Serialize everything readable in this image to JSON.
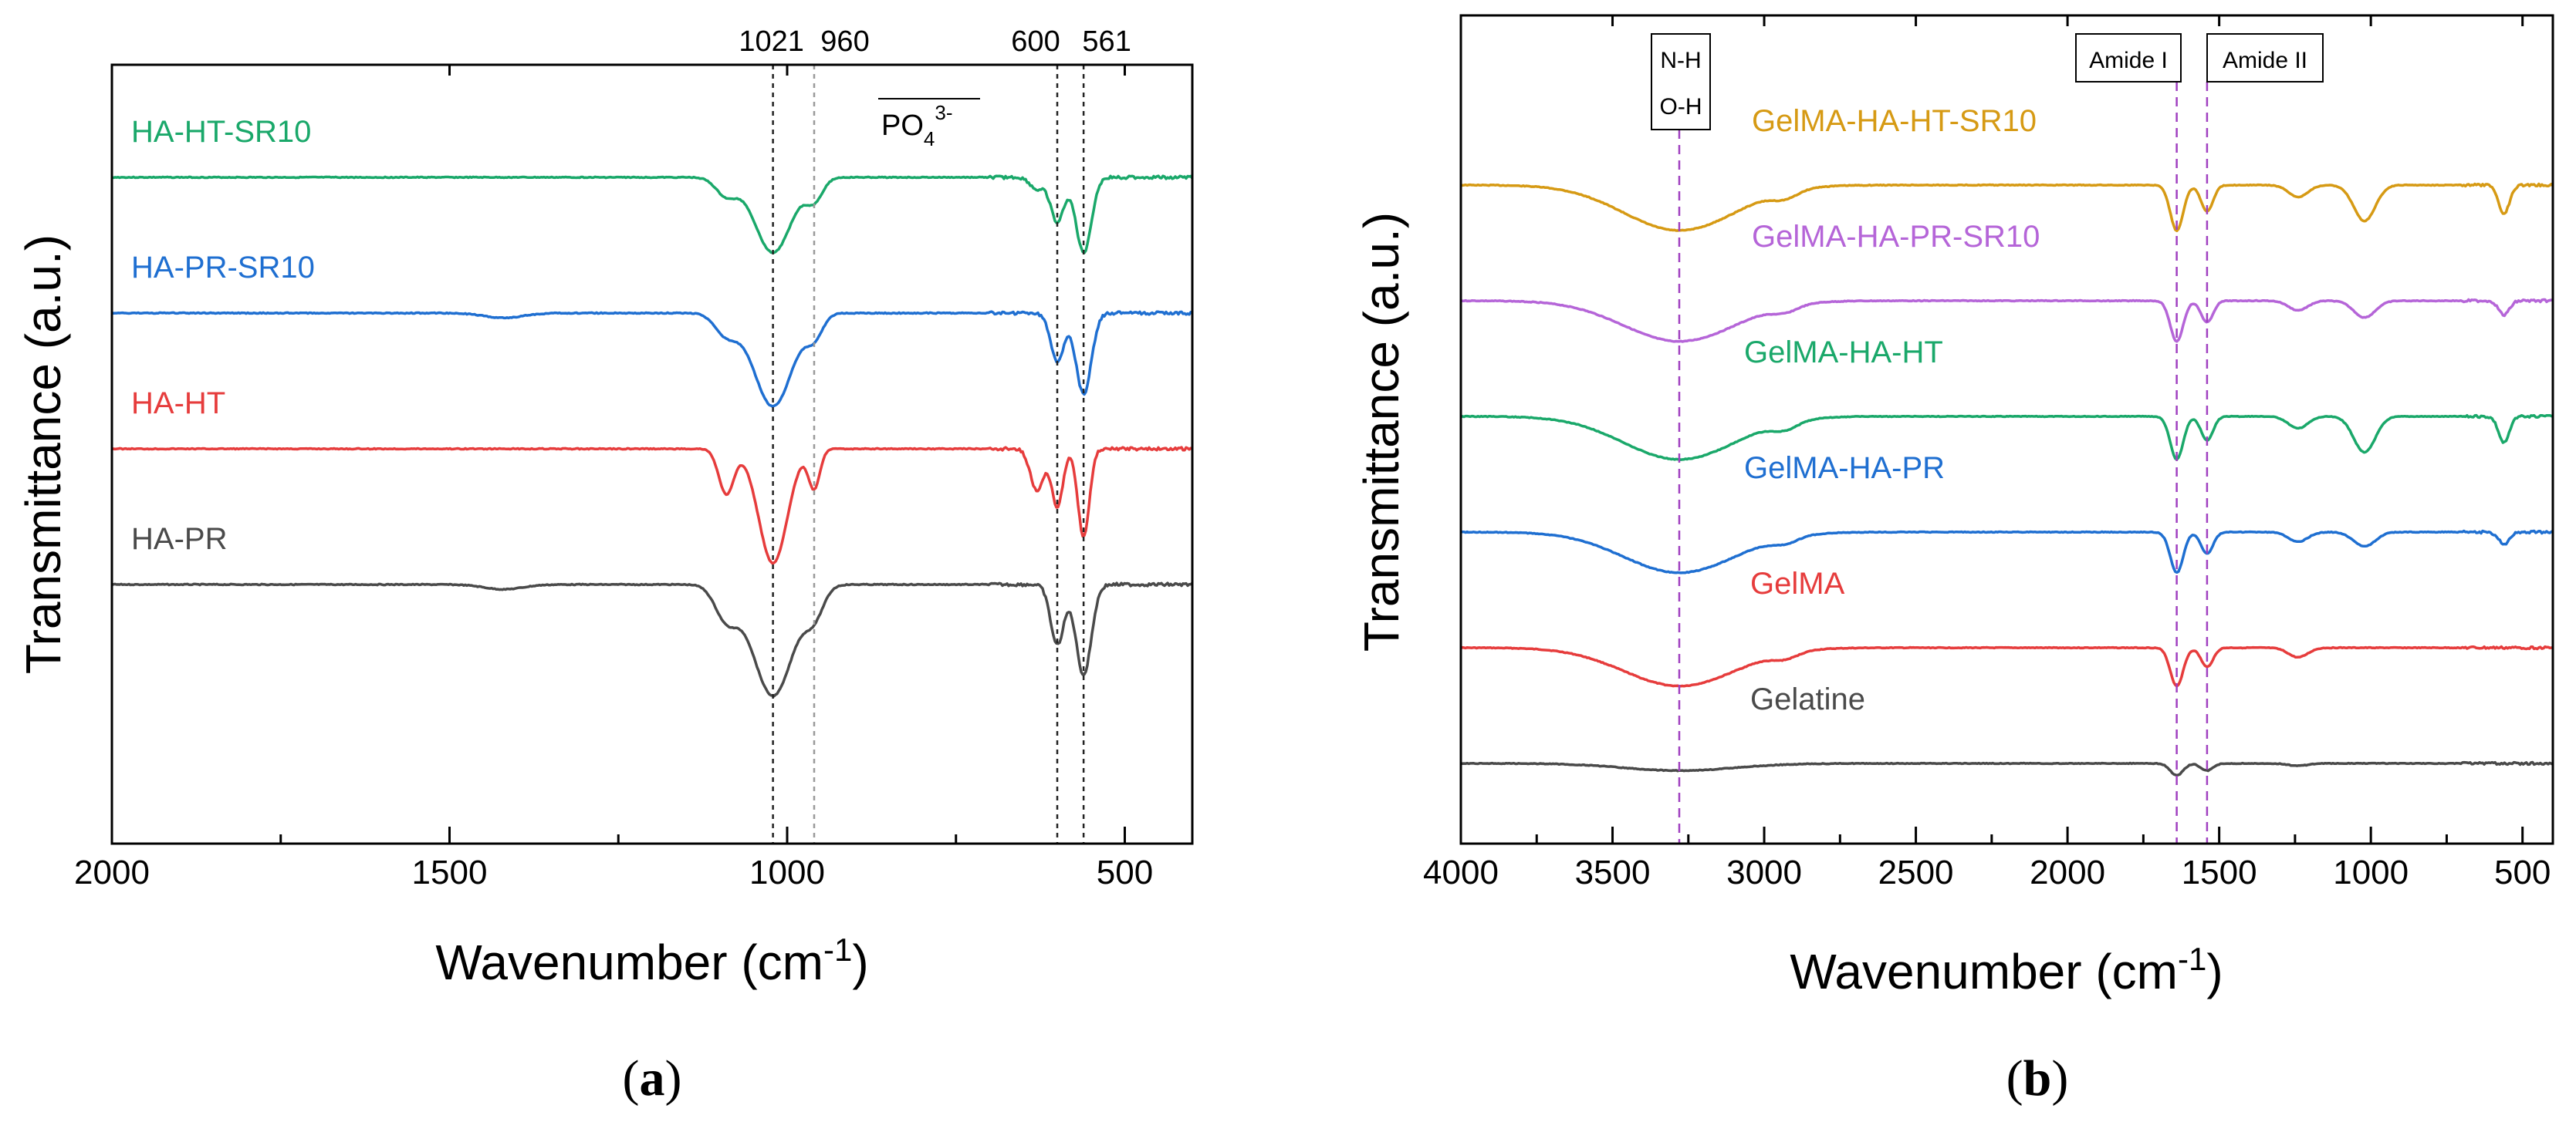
{
  "chart_data": [
    {
      "type": "line",
      "panel_label": "a",
      "xlabel_base": "Wavenumber (cm",
      "xlabel_sup": "-1",
      "xlabel_close": ")",
      "ylabel": "Transmittance (a.u.)",
      "xlim": [
        2000,
        400
      ],
      "xticks": [
        2000,
        1500,
        1000,
        500
      ],
      "xtick_labels": [
        "2000",
        "1500",
        "1000",
        "500"
      ],
      "yticks": false,
      "series": [
        {
          "name": "HA-HT-SR10",
          "color": "#1aa86a",
          "offset": 3.0,
          "peaks": [
            [
              1021,
              1.25,
              38
            ],
            [
              960,
              0.35,
              18
            ],
            [
              1090,
              0.3,
              22
            ],
            [
              600,
              0.75,
              14
            ],
            [
              561,
              1.25,
              16
            ],
            [
              630,
              0.2,
              14
            ]
          ]
        },
        {
          "name": "HA-PR-SR10",
          "color": "#1f6fd1",
          "offset": 2.0,
          "peaks": [
            [
              1021,
              1.55,
              40
            ],
            [
              960,
              0.35,
              18
            ],
            [
              1090,
              0.35,
              24
            ],
            [
              600,
              0.8,
              14
            ],
            [
              561,
              1.35,
              16
            ],
            [
              1420,
              0.08,
              40
            ]
          ]
        },
        {
          "name": "HA-HT",
          "color": "#e63c3c",
          "offset": 1.0,
          "peaks": [
            [
              1021,
              1.9,
              30
            ],
            [
              960,
              0.65,
              12
            ],
            [
              1090,
              0.75,
              16
            ],
            [
              600,
              0.95,
              12
            ],
            [
              561,
              1.45,
              12
            ],
            [
              630,
              0.7,
              14
            ]
          ]
        },
        {
          "name": "HA-PR",
          "color": "#4a4a4a",
          "offset": 0.0,
          "peaks": [
            [
              1021,
              1.85,
              42
            ],
            [
              960,
              0.45,
              20
            ],
            [
              1090,
              0.55,
              24
            ],
            [
              600,
              1.0,
              14
            ],
            [
              561,
              1.5,
              16
            ],
            [
              1420,
              0.08,
              40
            ]
          ]
        }
      ],
      "annotations": [
        {
          "text": "1021",
          "x": 1021
        },
        {
          "text": "960",
          "x": 960
        },
        {
          "text": "600",
          "x": 600
        },
        {
          "text": "561",
          "x": 561
        }
      ],
      "group_label_base": "PO",
      "group_label_sub": "4",
      "group_label_sup": "3-"
    },
    {
      "type": "line",
      "panel_label": "b",
      "xlabel_base": "Wavenumber (cm",
      "xlabel_sup": "-1",
      "xlabel_close": ")",
      "ylabel": "Transmittance (a.u.)",
      "xlim": [
        4000,
        400
      ],
      "xticks": [
        4000,
        3500,
        3000,
        2500,
        2000,
        1500,
        1000,
        500
      ],
      "xtick_labels": [
        "4000",
        "3500",
        "3000",
        "2500",
        "2000",
        "1500",
        "1000",
        "500"
      ],
      "yticks": false,
      "series": [
        {
          "name": "GelMA-HA-HT-SR10",
          "color": "#d69a14",
          "offset": 5.0,
          "peaks": [
            [
              3280,
              0.95,
              260
            ],
            [
              1640,
              0.95,
              30
            ],
            [
              1540,
              0.55,
              28
            ],
            [
              1021,
              0.75,
              50
            ],
            [
              561,
              0.6,
              25
            ],
            [
              2930,
              0.15,
              60
            ],
            [
              1240,
              0.25,
              45
            ]
          ]
        },
        {
          "name": "GelMA-HA-PR-SR10",
          "color": "#b565d8",
          "offset": 4.0,
          "peaks": [
            [
              3280,
              0.85,
              260
            ],
            [
              1640,
              0.85,
              30
            ],
            [
              1540,
              0.45,
              28
            ],
            [
              1021,
              0.35,
              50
            ],
            [
              561,
              0.3,
              25
            ],
            [
              2930,
              0.12,
              60
            ],
            [
              1240,
              0.2,
              45
            ]
          ]
        },
        {
          "name": "GelMA-HA-HT",
          "color": "#1aa86a",
          "offset": 3.0,
          "peaks": [
            [
              3280,
              0.9,
              260
            ],
            [
              1640,
              0.9,
              30
            ],
            [
              1540,
              0.5,
              28
            ],
            [
              1021,
              0.75,
              50
            ],
            [
              561,
              0.55,
              25
            ],
            [
              2930,
              0.15,
              60
            ],
            [
              1240,
              0.25,
              45
            ]
          ]
        },
        {
          "name": "GelMA-HA-PR",
          "color": "#1f6fd1",
          "offset": 2.0,
          "peaks": [
            [
              3280,
              0.85,
              260
            ],
            [
              1640,
              0.85,
              30
            ],
            [
              1540,
              0.45,
              28
            ],
            [
              1021,
              0.3,
              50
            ],
            [
              561,
              0.25,
              25
            ],
            [
              2930,
              0.12,
              60
            ],
            [
              1240,
              0.2,
              45
            ]
          ]
        },
        {
          "name": "GelMA",
          "color": "#e63c3c",
          "offset": 1.0,
          "peaks": [
            [
              3280,
              0.8,
              260
            ],
            [
              1640,
              0.8,
              30
            ],
            [
              1540,
              0.4,
              28
            ],
            [
              2930,
              0.12,
              60
            ],
            [
              1240,
              0.2,
              45
            ]
          ]
        },
        {
          "name": "Gelatine",
          "color": "#4a4a4a",
          "offset": 0.0,
          "peaks": [
            [
              3280,
              0.15,
              260
            ],
            [
              1640,
              0.25,
              30
            ],
            [
              1540,
              0.15,
              28
            ],
            [
              1240,
              0.05,
              45
            ]
          ]
        }
      ],
      "annotations": [
        {
          "text": "N-H",
          "x": 3280
        },
        {
          "text": "O-H",
          "x": 3280
        },
        {
          "text": "Amide I",
          "x": 1640
        },
        {
          "text": "Amide II",
          "x": 1540
        }
      ]
    }
  ]
}
